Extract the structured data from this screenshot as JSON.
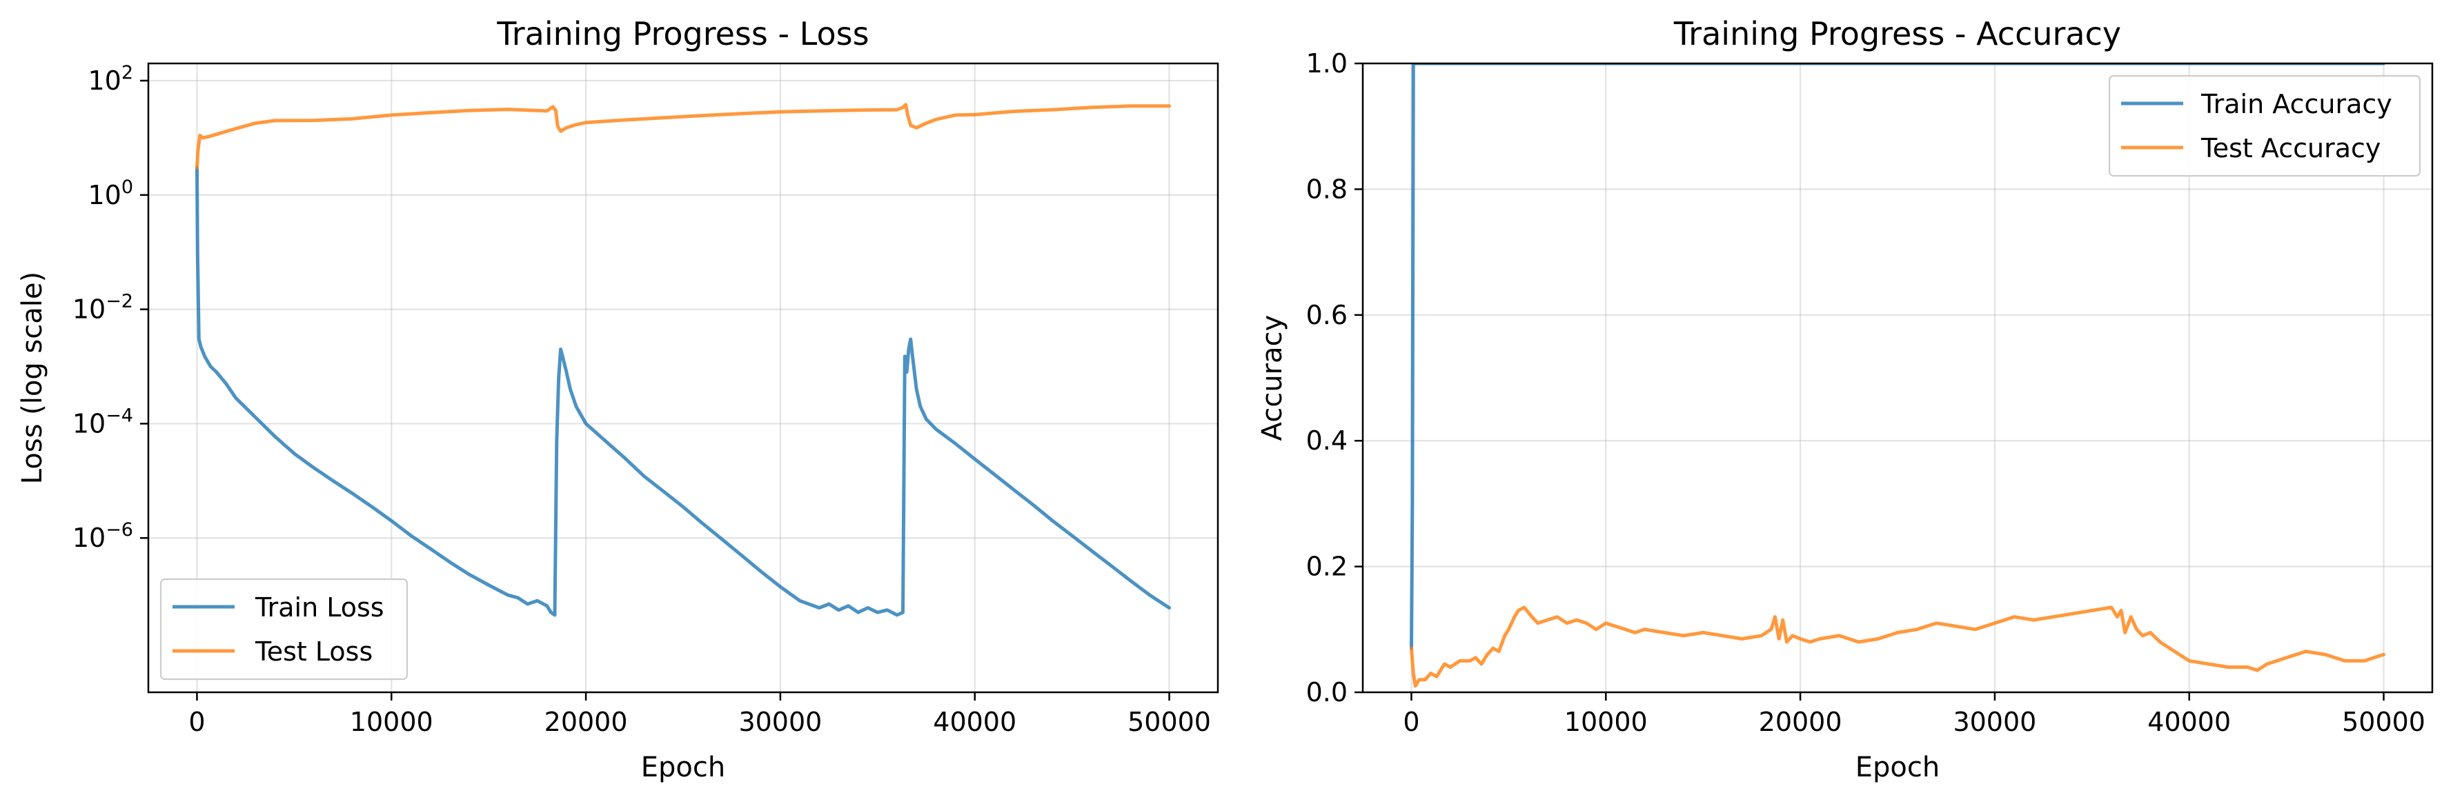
{
  "chart_data": [
    {
      "type": "line",
      "title": "Training Progress - Loss",
      "xlabel": "Epoch",
      "ylabel": "Loss (log scale)",
      "xlim": [
        -2500,
        52500
      ],
      "ylim": [
        2e-09,
        200
      ],
      "yscale": "log",
      "xticks": [
        0,
        10000,
        20000,
        30000,
        40000,
        50000
      ],
      "xtick_labels": [
        "0",
        "10000",
        "20000",
        "30000",
        "40000",
        "50000"
      ],
      "yticks": [
        {
          "value": 100,
          "base": "10",
          "exp": "2"
        },
        {
          "value": 1,
          "base": "10",
          "exp": "0"
        },
        {
          "value": 0.01,
          "base": "10",
          "exp": "−2"
        },
        {
          "value": 0.0001,
          "base": "10",
          "exp": "−4"
        },
        {
          "value": 1e-06,
          "base": "10",
          "exp": "−6"
        }
      ],
      "grid": true,
      "legend_position": "lower-left",
      "series": [
        {
          "name": "Train Loss",
          "color": "#1f77b4",
          "x": [
            0,
            30,
            100,
            200,
            400,
            700,
            1000,
            1500,
            2000,
            3000,
            4000,
            5000,
            6000,
            7000,
            8000,
            9000,
            10000,
            11000,
            12000,
            13000,
            14000,
            15000,
            16000,
            16500,
            17000,
            17500,
            18000,
            18200,
            18400,
            18500,
            18600,
            18700,
            18800,
            19000,
            19200,
            19500,
            20000,
            21000,
            22000,
            23000,
            24000,
            25000,
            26000,
            27000,
            28000,
            29000,
            30000,
            31000,
            32000,
            32500,
            33000,
            33500,
            34000,
            34500,
            35000,
            35500,
            36000,
            36300,
            36400,
            36500,
            36600,
            36700,
            36800,
            37000,
            37200,
            37500,
            38000,
            39000,
            40000,
            41000,
            42000,
            43000,
            44000,
            45000,
            46000,
            47000,
            48000,
            49000,
            50000
          ],
          "y": [
            3,
            0.1,
            0.003,
            0.0022,
            0.0015,
            0.001,
            0.0008,
            0.0005,
            0.00028,
            0.00013,
            6e-05,
            3e-05,
            1.7e-05,
            1e-05,
            6e-06,
            3.5e-06,
            2e-06,
            1.1e-06,
            6.5e-07,
            3.8e-07,
            2.3e-07,
            1.5e-07,
            1e-07,
            9e-08,
            7e-08,
            8e-08,
            6.5e-08,
            5e-08,
            4.5e-08,
            5e-05,
            0.0006,
            0.002,
            0.0015,
            0.0008,
            0.0004,
            0.0002,
            0.0001,
            5e-05,
            2.5e-05,
            1.2e-05,
            6.5e-06,
            3.5e-06,
            1.8e-06,
            9.5e-07,
            5e-07,
            2.6e-07,
            1.4e-07,
            8e-08,
            6e-08,
            7e-08,
            5.5e-08,
            6.5e-08,
            5e-08,
            6e-08,
            5e-08,
            5.5e-08,
            4.5e-08,
            5e-08,
            0.0015,
            0.0008,
            0.002,
            0.003,
            0.0015,
            0.0004,
            0.0002,
            0.00012,
            8e-05,
            4.5e-05,
            2.4e-05,
            1.3e-05,
            7e-06,
            3.8e-06,
            2e-06,
            1.1e-06,
            6e-07,
            3.3e-07,
            1.8e-07,
            1e-07,
            6e-08
          ]
        },
        {
          "name": "Test Loss",
          "color": "#ff7f0e",
          "x": [
            0,
            50,
            150,
            300,
            600,
            1000,
            2000,
            3000,
            4000,
            6000,
            8000,
            10000,
            12000,
            14000,
            16000,
            17000,
            18000,
            18300,
            18450,
            18550,
            18700,
            19000,
            19500,
            20000,
            22000,
            24000,
            26000,
            28000,
            30000,
            32000,
            34000,
            36000,
            36300,
            36450,
            36550,
            36700,
            37000,
            37500,
            38000,
            39000,
            40000,
            42000,
            44000,
            46000,
            48000,
            50000
          ],
          "y": [
            3,
            6,
            11,
            10,
            10.5,
            11.5,
            14.5,
            18,
            20,
            20.2,
            21.5,
            25,
            27.5,
            30,
            31.5,
            30.5,
            29.5,
            35,
            30,
            16,
            13,
            15,
            17,
            18.5,
            20.5,
            22.5,
            24.5,
            26.5,
            28.5,
            29.5,
            30.5,
            31,
            34,
            38,
            25,
            16.5,
            15,
            18,
            21,
            25,
            25.5,
            29,
            31,
            34,
            36,
            36
          ]
        }
      ]
    },
    {
      "type": "line",
      "title": "Training Progress - Accuracy",
      "xlabel": "Epoch",
      "ylabel": "Accuracy",
      "xlim": [
        -2500,
        52500
      ],
      "ylim": [
        0,
        1
      ],
      "xticks": [
        0,
        10000,
        20000,
        30000,
        40000,
        50000
      ],
      "xtick_labels": [
        "0",
        "10000",
        "20000",
        "30000",
        "40000",
        "50000"
      ],
      "yticks": [
        0,
        0.2,
        0.4,
        0.6,
        0.8,
        1.0
      ],
      "ytick_labels": [
        "0.0",
        "0.2",
        "0.4",
        "0.6",
        "0.8",
        "1.0"
      ],
      "grid": true,
      "legend_position": "top-right",
      "series": [
        {
          "name": "Train Accuracy",
          "color": "#1f77b4",
          "x": [
            0,
            50,
            100,
            200,
            400,
            600,
            50000
          ],
          "y": [
            0.07,
            0.3,
            1.0,
            1.0,
            1.0,
            1.0,
            1.0
          ]
        },
        {
          "name": "Test Accuracy",
          "color": "#ff7f0e",
          "x": [
            0,
            100,
            200,
            400,
            700,
            1000,
            1300,
            1500,
            1700,
            2000,
            2500,
            3000,
            3300,
            3600,
            3900,
            4200,
            4500,
            4800,
            5000,
            5300,
            5500,
            5800,
            6200,
            6500,
            7000,
            7500,
            8000,
            8500,
            9000,
            9500,
            10000,
            11000,
            11500,
            12000,
            13000,
            14000,
            15000,
            16000,
            17000,
            18000,
            18500,
            18700,
            18900,
            19100,
            19300,
            19600,
            20000,
            20500,
            21000,
            22000,
            23000,
            24000,
            25000,
            26000,
            26500,
            27000,
            28000,
            29000,
            30000,
            31000,
            32000,
            33000,
            34000,
            35000,
            36000,
            36300,
            36500,
            36700,
            37000,
            37300,
            37600,
            38000,
            38500,
            39000,
            40000,
            41000,
            42000,
            43000,
            43500,
            44000,
            44500,
            45000,
            46000,
            47000,
            48000,
            49000,
            49500,
            50000
          ],
          "y": [
            0.07,
            0.03,
            0.01,
            0.02,
            0.02,
            0.03,
            0.025,
            0.035,
            0.045,
            0.04,
            0.05,
            0.05,
            0.055,
            0.045,
            0.06,
            0.07,
            0.065,
            0.09,
            0.1,
            0.12,
            0.13,
            0.135,
            0.12,
            0.11,
            0.115,
            0.12,
            0.11,
            0.115,
            0.11,
            0.1,
            0.11,
            0.1,
            0.095,
            0.1,
            0.095,
            0.09,
            0.095,
            0.09,
            0.085,
            0.09,
            0.1,
            0.12,
            0.085,
            0.115,
            0.08,
            0.09,
            0.085,
            0.08,
            0.085,
            0.09,
            0.08,
            0.085,
            0.095,
            0.1,
            0.105,
            0.11,
            0.105,
            0.1,
            0.11,
            0.12,
            0.115,
            0.12,
            0.125,
            0.13,
            0.135,
            0.12,
            0.13,
            0.095,
            0.12,
            0.1,
            0.09,
            0.095,
            0.08,
            0.07,
            0.05,
            0.045,
            0.04,
            0.04,
            0.035,
            0.045,
            0.05,
            0.055,
            0.065,
            0.06,
            0.05,
            0.05,
            0.055,
            0.06
          ]
        }
      ]
    }
  ]
}
